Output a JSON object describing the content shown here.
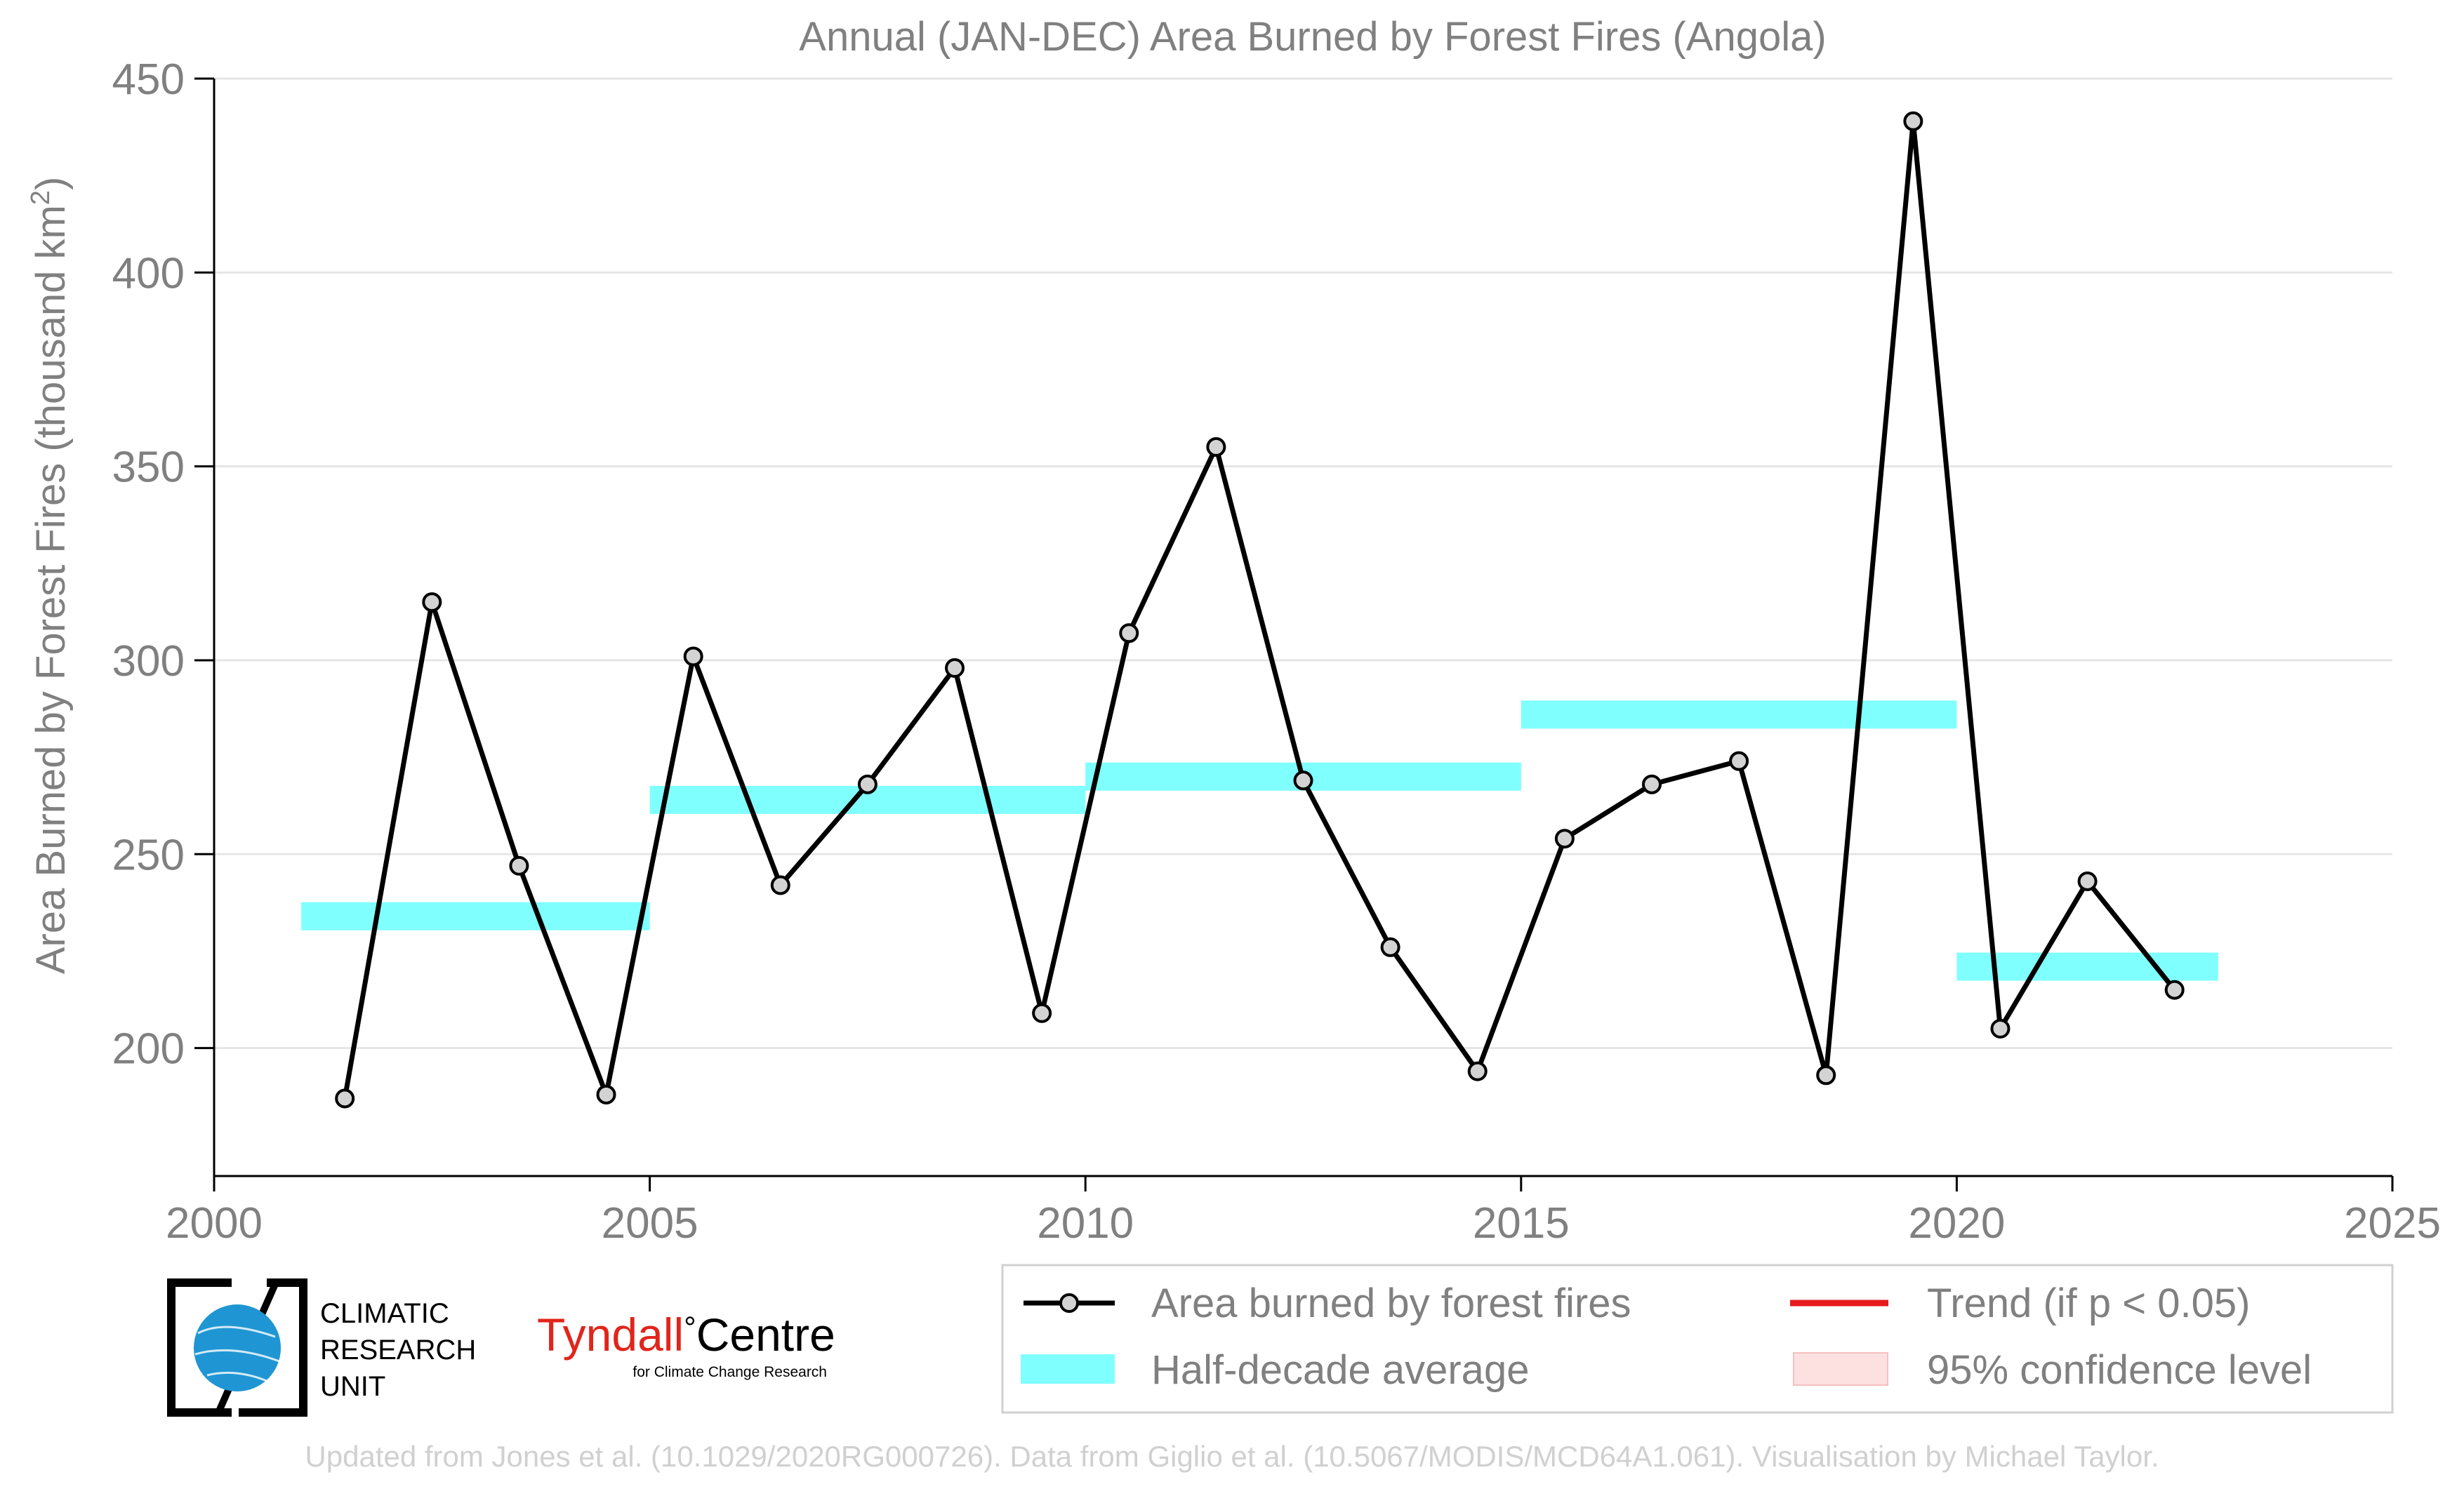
{
  "chart_data": {
    "type": "line",
    "title": "Annual (JAN-DEC) Area Burned by Forest Fires (Angola)",
    "xlabel": "",
    "ylabel": "Area Burned by Forest Fires (thousand km",
    "ylabel_superscript": "2",
    "ylabel_suffix": ")",
    "xlim": [
      2000,
      2025
    ],
    "ylim": [
      167,
      450
    ],
    "xticks": [
      2000,
      2005,
      2010,
      2015,
      2020,
      2025
    ],
    "yticks": [
      200,
      250,
      300,
      350,
      400,
      450
    ],
    "grid": "horizontal",
    "legend_position": "bottom",
    "series": [
      {
        "name": "Area burned by forest fires",
        "color": "#000000",
        "marker_fill": "#d3d3d3",
        "x": [
          2001.5,
          2002.5,
          2003.5,
          2004.5,
          2005.5,
          2006.5,
          2007.5,
          2008.5,
          2009.5,
          2010.5,
          2011.5,
          2012.5,
          2013.5,
          2014.5,
          2015.5,
          2016.5,
          2017.5,
          2018.5,
          2019.5,
          2020.5,
          2021.5,
          2022.5
        ],
        "y": [
          187,
          315,
          247,
          188,
          301,
          242,
          268,
          298,
          209,
          307,
          355,
          269,
          226,
          194,
          254,
          268,
          274,
          193,
          439,
          205,
          243,
          215
        ]
      }
    ],
    "half_decade_averages": {
      "name": "Half-decade average",
      "color": "#80ffff",
      "segments": [
        {
          "x_start": 2001,
          "x_end": 2005,
          "y": 234
        },
        {
          "x_start": 2005,
          "x_end": 2010,
          "y": 264
        },
        {
          "x_start": 2010,
          "x_end": 2015,
          "y": 270
        },
        {
          "x_start": 2015,
          "x_end": 2020,
          "y": 286
        },
        {
          "x_start": 2020,
          "x_end": 2023,
          "y": 221
        }
      ]
    },
    "legend": [
      {
        "label": "Area burned by forest fires",
        "kind": "line-marker",
        "color": "#000000"
      },
      {
        "label": "Trend (if p < 0.05)",
        "kind": "line",
        "color": "#e41a1c"
      },
      {
        "label": "Half-decade average",
        "kind": "band",
        "color": "#80ffff"
      },
      {
        "label": "95% confidence level",
        "kind": "band",
        "color": "#fde0e0"
      }
    ]
  },
  "logos": {
    "cru_lines": [
      "CLIMATIC",
      "RESEARCH",
      "UNIT"
    ],
    "tyndall_red": "Tyndall",
    "tyndall_degree": "°",
    "tyndall_black": "Centre",
    "tyndall_sub": "for Climate Change Research"
  },
  "footer": "Updated from Jones et al. (10.1029/2020RG000726). Data from Giglio et al. (10.5067/MODIS/MCD64A1.061). Visualisation by Michael Taylor.",
  "colors": {
    "text_gray": "#808080",
    "footer_gray": "#d0d0d0",
    "grid": "#e6e6e6",
    "cru_blue": "#1f96d3",
    "tyndall_red": "#e1251b"
  }
}
